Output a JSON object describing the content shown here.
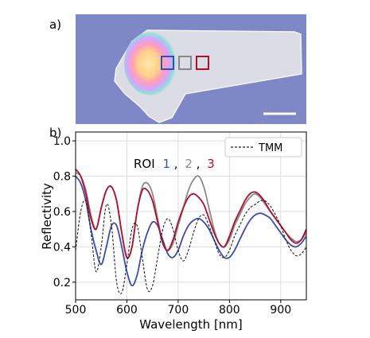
{
  "panel_a": {
    "label": "a)",
    "roi_box_colors": [
      "#3a4cb0",
      "#888888",
      "#b0102c"
    ],
    "scalebar_color": "#ffffff"
  },
  "panel_b": {
    "label": "b)"
  },
  "chart_data": {
    "type": "line",
    "title": "",
    "xlabel": "Wavelength [nm]",
    "ylabel": "Reflectivity",
    "xlim": [
      500,
      950
    ],
    "ylim": [
      0.1,
      1.05
    ],
    "xticks": [
      500,
      600,
      700,
      800,
      900
    ],
    "yticks": [
      0.2,
      0.4,
      0.6,
      0.8,
      1.0
    ],
    "xtick_labels": [
      "500",
      "600",
      "700",
      "800",
      "900"
    ],
    "ytick_labels": [
      "0.2",
      "0.4",
      "0.6",
      "0.8",
      "1.0"
    ],
    "grid": true,
    "legend": {
      "entry": "TMM",
      "placement": "top-right"
    },
    "roi_annotation": {
      "prefix": "ROI",
      "n1": "1",
      "sep1": ",",
      "n2": "2",
      "sep2": ",",
      "n3": "3"
    },
    "series": [
      {
        "name": "1",
        "color": "#3a4cb0",
        "x": [
          500,
          510,
          520,
          530,
          540,
          550,
          560,
          570,
          580,
          590,
          600,
          610,
          620,
          630,
          640,
          650,
          660,
          670,
          680,
          690,
          700,
          710,
          720,
          730,
          740,
          750,
          760,
          770,
          780,
          790,
          800,
          810,
          820,
          830,
          840,
          850,
          860,
          870,
          880,
          890,
          900,
          910,
          920,
          930,
          940,
          950
        ],
        "y": [
          0.8,
          0.76,
          0.66,
          0.5,
          0.38,
          0.3,
          0.4,
          0.52,
          0.52,
          0.4,
          0.26,
          0.18,
          0.24,
          0.38,
          0.48,
          0.54,
          0.52,
          0.44,
          0.36,
          0.34,
          0.38,
          0.46,
          0.52,
          0.55,
          0.56,
          0.54,
          0.5,
          0.44,
          0.38,
          0.34,
          0.34,
          0.38,
          0.44,
          0.5,
          0.55,
          0.58,
          0.59,
          0.58,
          0.56,
          0.52,
          0.48,
          0.44,
          0.41,
          0.4,
          0.42,
          0.46
        ]
      },
      {
        "name": "2",
        "color": "#8a8a8a",
        "x": [
          500,
          510,
          520,
          530,
          540,
          550,
          560,
          570,
          580,
          590,
          600,
          610,
          620,
          630,
          640,
          650,
          660,
          670,
          680,
          690,
          700,
          710,
          720,
          730,
          740,
          750,
          760,
          770,
          780,
          790,
          800,
          810,
          820,
          830,
          840,
          850,
          860,
          870,
          880,
          890,
          900,
          910,
          920,
          930,
          940,
          950
        ],
        "y": [
          0.82,
          0.8,
          0.72,
          0.58,
          0.5,
          0.62,
          0.72,
          0.74,
          0.66,
          0.48,
          0.34,
          0.4,
          0.6,
          0.74,
          0.76,
          0.7,
          0.56,
          0.42,
          0.38,
          0.42,
          0.52,
          0.62,
          0.72,
          0.78,
          0.8,
          0.74,
          0.62,
          0.5,
          0.42,
          0.4,
          0.44,
          0.52,
          0.58,
          0.64,
          0.68,
          0.7,
          0.68,
          0.64,
          0.6,
          0.56,
          0.52,
          0.48,
          0.45,
          0.43,
          0.44,
          0.48
        ]
      },
      {
        "name": "3",
        "color": "#b0102c",
        "x": [
          500,
          510,
          520,
          530,
          540,
          550,
          560,
          570,
          580,
          590,
          600,
          610,
          620,
          630,
          640,
          650,
          660,
          670,
          680,
          690,
          700,
          710,
          720,
          730,
          740,
          750,
          760,
          770,
          780,
          790,
          800,
          810,
          820,
          830,
          840,
          850,
          860,
          870,
          880,
          890,
          900,
          910,
          920,
          930,
          940,
          950
        ],
        "y": [
          0.84,
          0.8,
          0.7,
          0.56,
          0.5,
          0.62,
          0.72,
          0.74,
          0.66,
          0.48,
          0.34,
          0.4,
          0.6,
          0.72,
          0.72,
          0.66,
          0.54,
          0.42,
          0.38,
          0.44,
          0.54,
          0.62,
          0.68,
          0.7,
          0.68,
          0.64,
          0.56,
          0.48,
          0.42,
          0.4,
          0.46,
          0.54,
          0.6,
          0.66,
          0.7,
          0.71,
          0.69,
          0.65,
          0.6,
          0.56,
          0.52,
          0.48,
          0.44,
          0.42,
          0.44,
          0.5
        ]
      },
      {
        "name": "TMM",
        "color": "#222222",
        "dashed": true,
        "x": [
          500,
          510,
          520,
          530,
          540,
          550,
          560,
          570,
          580,
          590,
          600,
          610,
          620,
          630,
          640,
          650,
          660,
          670,
          680,
          690,
          700,
          710,
          720,
          730,
          740,
          750,
          760,
          770,
          780,
          790,
          800,
          810,
          820,
          830,
          840,
          850,
          860,
          870,
          880,
          890,
          900,
          910,
          920,
          930,
          940,
          950
        ],
        "y": [
          0.38,
          0.6,
          0.66,
          0.48,
          0.26,
          0.4,
          0.64,
          0.52,
          0.2,
          0.14,
          0.3,
          0.5,
          0.52,
          0.34,
          0.16,
          0.18,
          0.34,
          0.5,
          0.56,
          0.5,
          0.38,
          0.32,
          0.38,
          0.48,
          0.56,
          0.58,
          0.52,
          0.44,
          0.36,
          0.34,
          0.38,
          0.46,
          0.52,
          0.58,
          0.62,
          0.64,
          0.66,
          0.66,
          0.63,
          0.58,
          0.52,
          0.44,
          0.38,
          0.35,
          0.36,
          0.4
        ]
      }
    ]
  }
}
